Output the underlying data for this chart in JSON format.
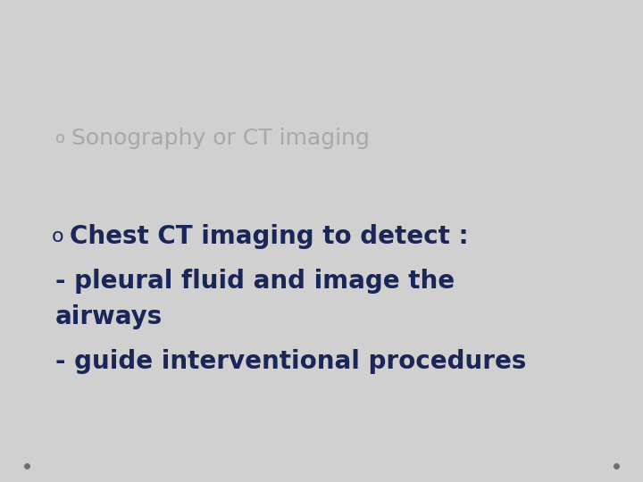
{
  "background_color": "#d0d0d0",
  "line1_bullet": "o",
  "line1_text": "Sonography or CT imaging",
  "line1_color": "#a8a8a8",
  "line1_fontsize": 18,
  "line2_bullet": "o",
  "line2_text": "Chest CT imaging to detect :",
  "line2_color": "#1a2558",
  "line2_fontsize": 20,
  "line3a_text": "- pleural fluid and image the",
  "line3b_text": "airways",
  "line3_color": "#1a2558",
  "line3_fontsize": 20,
  "line4_text": "- guide interventional procedures",
  "line4_color": "#1a2558",
  "line4_fontsize": 20,
  "dot_color": "#707070",
  "dot_size": 4,
  "font_family": "DejaVu Sans"
}
